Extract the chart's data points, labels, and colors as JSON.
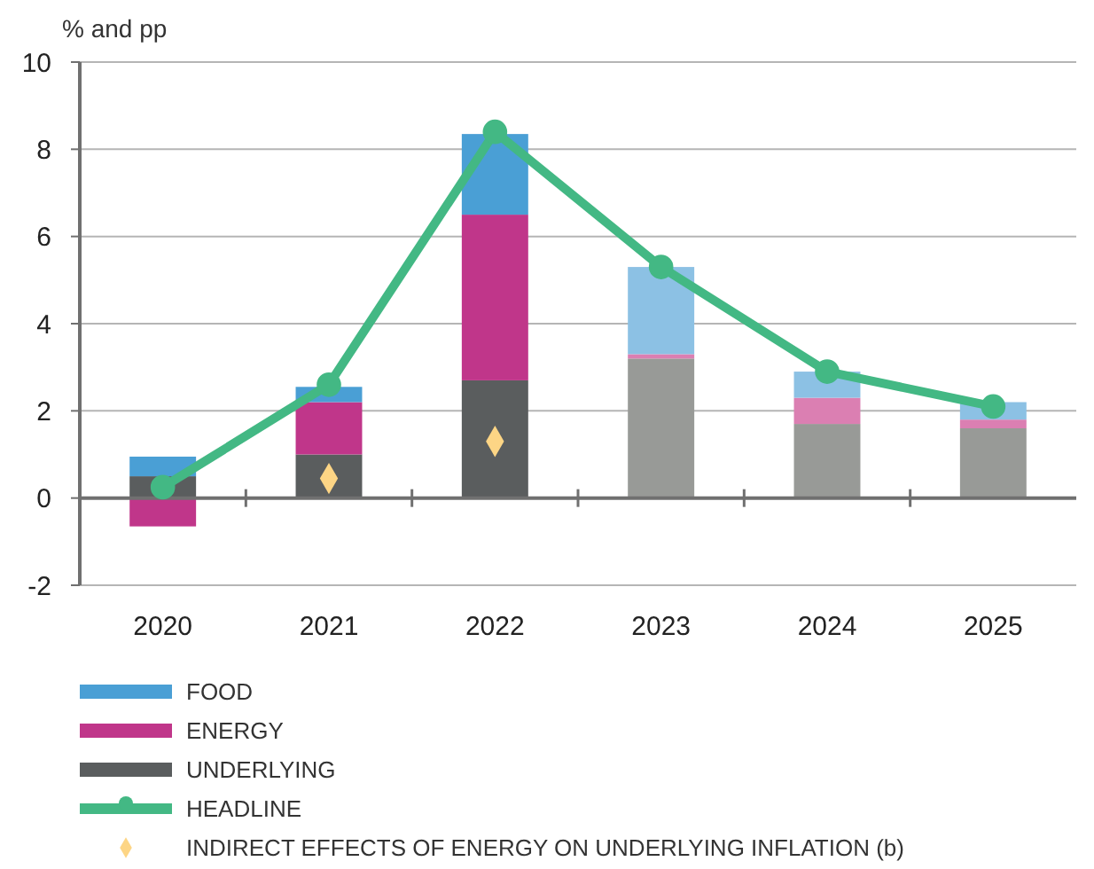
{
  "chart_data": {
    "type": "bar",
    "stacked": true,
    "ylabel": "% and pp",
    "categories": [
      "2020",
      "2021",
      "2022",
      "2023",
      "2024",
      "2025"
    ],
    "ylim": [
      -2,
      10
    ],
    "yticks": [
      -2,
      0,
      2,
      4,
      6,
      8,
      10
    ],
    "grid": "y",
    "legend": "bottom",
    "series": [
      {
        "name": "UNDERLYING",
        "color": "#5a5d5e",
        "colors": [
          "#5a5d5e",
          "#5a5d5e",
          "#5a5d5e",
          "#989a97",
          "#989a97",
          "#989a97"
        ],
        "values": [
          0.5,
          1.0,
          2.7,
          3.2,
          1.7,
          1.6
        ]
      },
      {
        "name": "ENERGY",
        "color": "#c0368a",
        "colors": [
          "#c0368a",
          "#c0368a",
          "#c0368a",
          "#db7fb2",
          "#db7fb2",
          "#db7fb2"
        ],
        "values": [
          -0.65,
          1.2,
          3.8,
          0.1,
          0.6,
          0.2
        ]
      },
      {
        "name": "FOOD",
        "color": "#4a9fd5",
        "colors": [
          "#4a9fd5",
          "#4a9fd5",
          "#4a9fd5",
          "#8cc1e4",
          "#8cc1e4",
          "#8cc1e4"
        ],
        "values": [
          0.45,
          0.35,
          1.85,
          2.0,
          0.6,
          0.4
        ]
      },
      {
        "name": "HEADLINE",
        "type": "line",
        "color": "#43b884",
        "marker": "circle",
        "values": [
          0.25,
          2.6,
          8.4,
          5.3,
          2.9,
          2.1
        ]
      },
      {
        "name": "INDIRECT EFFECTS OF ENERGY ON UNDERLYING INFLATION (b)",
        "type": "scatter",
        "color": "#fdd585",
        "marker": "diamond",
        "values": [
          null,
          0.45,
          1.3,
          null,
          null,
          null
        ]
      }
    ]
  }
}
